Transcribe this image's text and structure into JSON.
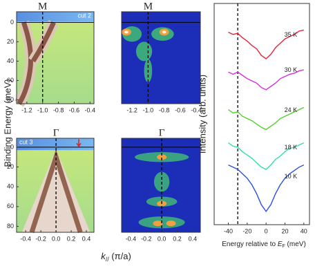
{
  "chart_data": [
    {
      "type": "heatmap",
      "title": "M",
      "label": "cut 2",
      "marker_k": -1,
      "xlim": [
        -1.33,
        -0.35
      ],
      "xticks": [
        -1.2,
        {
          "value": -1,
          "label": "-1.0"
        },
        -0.8,
        -0.6,
        -0.4
      ],
      "ylim": [
        -11,
        84
      ],
      "yticks": [
        0,
        20,
        40,
        60,
        80
      ]
    },
    {
      "type": "heatmap",
      "title": "M",
      "marker_k": -1,
      "xlim": [
        -1.33,
        -0.35
      ],
      "xticks": [
        -1.2,
        {
          "value": -1,
          "label": "-1.0"
        },
        -0.8,
        -0.6,
        -0.4
      ],
      "ylim": [
        -11,
        84
      ]
    },
    {
      "type": "heatmap",
      "title": "Γ",
      "label": "cut 3",
      "marker_k": 0,
      "xlim": [
        -0.52,
        0.5
      ],
      "xticks": [
        -0.4,
        -0.2,
        {
          "value": 0,
          "label": "0.0"
        },
        0.2,
        0.4
      ],
      "ylim": [
        -9,
        86
      ],
      "yticks": [
        0,
        20,
        40,
        60,
        80
      ]
    },
    {
      "type": "heatmap",
      "title": "Γ",
      "marker_k": 0,
      "xlim": [
        -0.52,
        0.5
      ],
      "xticks": [
        -0.4,
        -0.2,
        {
          "value": 0,
          "label": "0.0"
        },
        0.2,
        0.4
      ],
      "ylim": [
        -9,
        86
      ]
    },
    {
      "type": "line",
      "y_label": "Intensity (arb. units)",
      "x_label": {
        "before": "Energy relative to ",
        "symbol": "E",
        "sub": "F",
        "after": " (meV)"
      },
      "marker_x": -30,
      "xlim": [
        -55,
        46
      ],
      "xticks": [
        -40,
        -20,
        0,
        20,
        40
      ],
      "ylim": [
        0,
        100
      ],
      "x": [
        -40,
        -35,
        -30,
        -25,
        -20,
        -15,
        -10,
        -5,
        0,
        5,
        10,
        15,
        20,
        25,
        30,
        35,
        40
      ],
      "series": [
        {
          "name": "35 K",
          "color": "#e8213a",
          "values": [
            87,
            86,
            86.5,
            84.5,
            83,
            81,
            79.5,
            76.5,
            75,
            77,
            80,
            82,
            84,
            85,
            86,
            87.5,
            88
          ]
        },
        {
          "name": "30 K",
          "color": "#d62fd6",
          "values": [
            69,
            68,
            69,
            67.5,
            66,
            65,
            64,
            62,
            61,
            62.5,
            64,
            66,
            67,
            68,
            68.5,
            69.5,
            70
          ]
        },
        {
          "name": "24 K",
          "color": "#4fd12a",
          "values": [
            52,
            50.5,
            51,
            49,
            48,
            47,
            45.5,
            44,
            43,
            44.5,
            46,
            48,
            49,
            50,
            51,
            52,
            53
          ]
        },
        {
          "name": "18 K",
          "color": "#2fe0a8",
          "values": [
            37,
            35.5,
            35,
            33,
            31.5,
            30,
            28,
            26,
            25,
            27,
            29.5,
            31,
            33,
            34.5,
            35,
            36,
            37
          ]
        },
        {
          "name": "10 K",
          "color": "#2a4fe0",
          "values": [
            27,
            26,
            25,
            23,
            21,
            18,
            14,
            9,
            6,
            9,
            14,
            18,
            21,
            23,
            24.5,
            26,
            27
          ]
        }
      ]
    }
  ],
  "shared": {
    "y_label": "Binding Energy (meV)",
    "x_label": {
      "symbol": "k",
      "sub": "//",
      "unit": " (π/a)"
    }
  }
}
